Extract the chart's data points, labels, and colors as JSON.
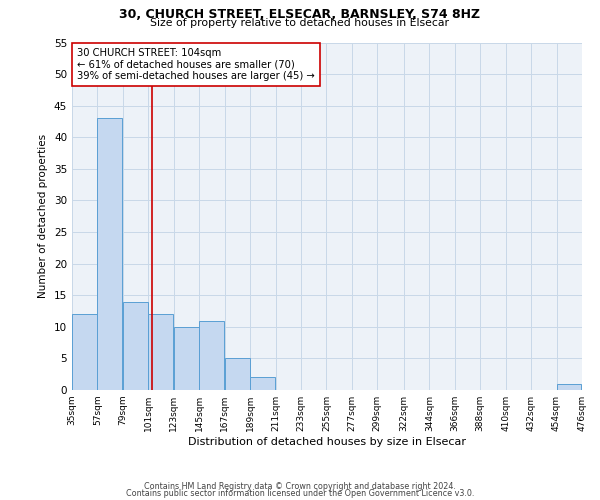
{
  "title1": "30, CHURCH STREET, ELSECAR, BARNSLEY, S74 8HZ",
  "title2": "Size of property relative to detached houses in Elsecar",
  "xlabel": "Distribution of detached houses by size in Elsecar",
  "ylabel": "Number of detached properties",
  "bar_color": "#c5d8f0",
  "bar_edge_color": "#5a9fd4",
  "bins": [
    35,
    57,
    79,
    101,
    123,
    145,
    167,
    189,
    211,
    233,
    255,
    277,
    299,
    322,
    344,
    366,
    388,
    410,
    432,
    454,
    476
  ],
  "bin_labels": [
    "35sqm",
    "57sqm",
    "79sqm",
    "101sqm",
    "123sqm",
    "145sqm",
    "167sqm",
    "189sqm",
    "211sqm",
    "233sqm",
    "255sqm",
    "277sqm",
    "299sqm",
    "322sqm",
    "344sqm",
    "366sqm",
    "388sqm",
    "410sqm",
    "432sqm",
    "454sqm",
    "476sqm"
  ],
  "counts": [
    12,
    43,
    14,
    12,
    10,
    11,
    5,
    2,
    0,
    0,
    0,
    0,
    0,
    0,
    0,
    0,
    0,
    0,
    0,
    1
  ],
  "ylim": [
    0,
    55
  ],
  "yticks": [
    0,
    5,
    10,
    15,
    20,
    25,
    30,
    35,
    40,
    45,
    50,
    55
  ],
  "property_line_x": 104,
  "property_line_color": "#cc0000",
  "annotation_line1": "30 CHURCH STREET: 104sqm",
  "annotation_line2": "← 61% of detached houses are smaller (70)",
  "annotation_line3": "39% of semi-detached houses are larger (45) →",
  "annotation_box_color": "#ffffff",
  "annotation_box_edge": "#cc0000",
  "footer1": "Contains HM Land Registry data © Crown copyright and database right 2024.",
  "footer2": "Contains public sector information licensed under the Open Government Licence v3.0.",
  "grid_color": "#c8d8e8",
  "background_color": "#edf2f8"
}
